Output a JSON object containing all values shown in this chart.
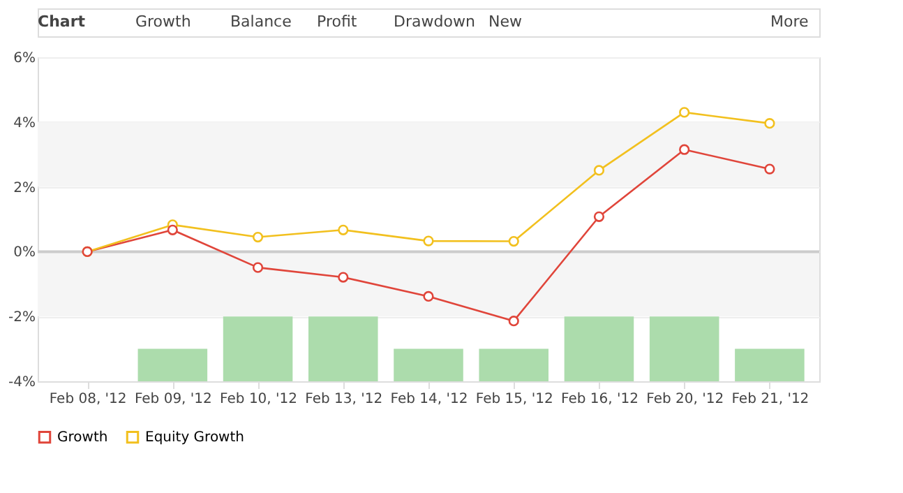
{
  "chart_data": {
    "type": "line",
    "title": "Chart",
    "annotations": [
      "Growth",
      "Balance",
      "Profit",
      "Drawdown",
      "New",
      "More"
    ],
    "categories": [
      "Feb 08, '12",
      "Feb 09, '12",
      "Feb 10, '12",
      "Feb 13, '12",
      "Feb 14, '12",
      "Feb 15, '12",
      "Feb 16, '12",
      "Feb 20, '12",
      "Feb 21, '12"
    ],
    "series": [
      {
        "type": "bar",
        "color": "#acdcac",
        "base": [
          null,
          -4,
          -4,
          -4,
          -4,
          -4,
          -4,
          -4,
          -4
        ],
        "values": [
          null,
          1,
          2,
          2,
          1,
          1,
          2,
          2,
          1
        ]
      },
      {
        "name": "Growth",
        "color": "#e0453a",
        "values": [
          0,
          0.67,
          -0.49,
          -0.79,
          -1.38,
          -2.14,
          1.08,
          3.15,
          2.55
        ]
      },
      {
        "name": "Equity Growth",
        "color": "#f2c01e",
        "values": [
          0,
          0.83,
          0.45,
          0.67,
          0.33,
          0.32,
          2.51,
          4.3,
          3.96
        ]
      }
    ],
    "ylim": [
      -4,
      6
    ],
    "yticks": [
      {
        "value": -4,
        "label": "-4%"
      },
      {
        "value": -2,
        "label": "-2%"
      },
      {
        "value": 0,
        "label": "0%"
      },
      {
        "value": 2,
        "label": "2%"
      },
      {
        "value": 4,
        "label": "4%"
      },
      {
        "value": 6,
        "label": "6%"
      }
    ],
    "bands": [
      {
        "axis": "y",
        "from": 2,
        "to": 4,
        "color": "#f5f5f5"
      },
      {
        "axis": "y",
        "from": -2,
        "to": 0,
        "color": "#f5f5f5"
      }
    ],
    "ref_lines": [
      {
        "axis": "y",
        "value": 0,
        "color": "#cccccc"
      }
    ],
    "grid": "y",
    "legend": "bottom",
    "marker": "circle",
    "line_style": "solid"
  }
}
